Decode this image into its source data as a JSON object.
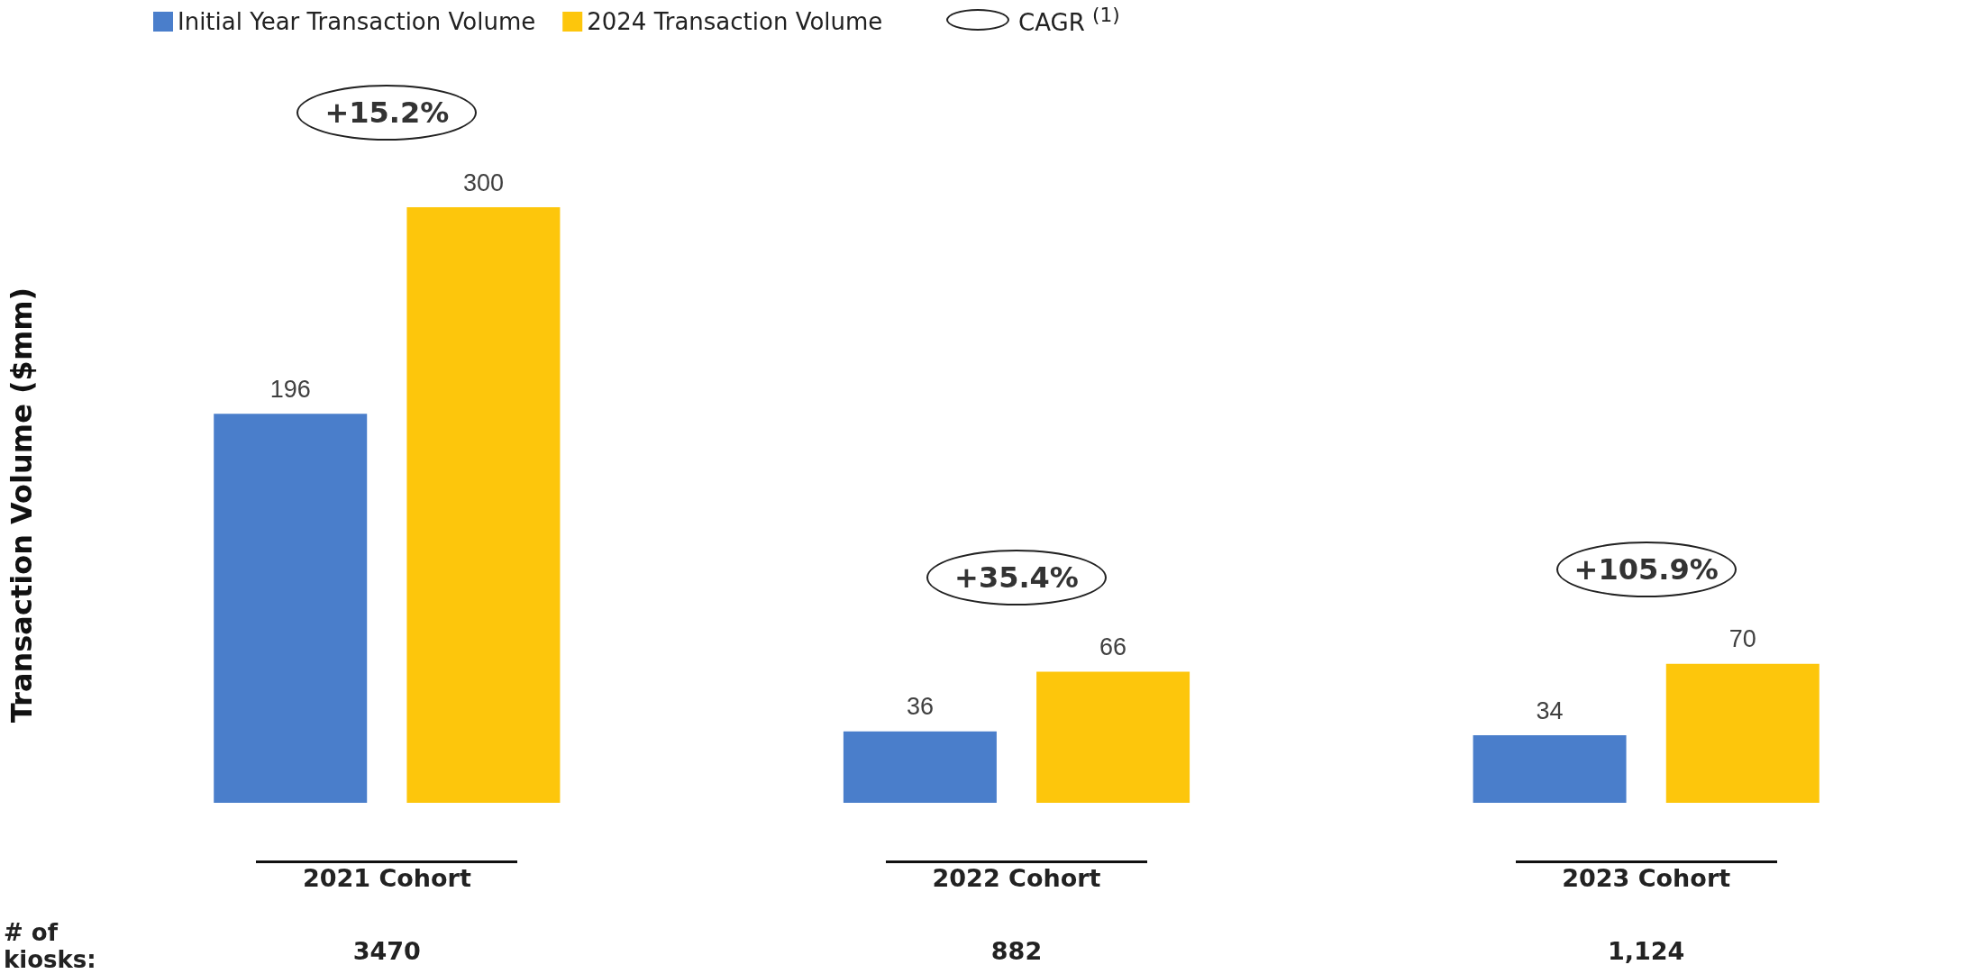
{
  "chart_data": {
    "type": "bar",
    "ylabel": "Transaction Volume ($mm)",
    "categories": [
      "2021 Cohort",
      "2022 Cohort",
      "2023 Cohort"
    ],
    "series": [
      {
        "name": "Initial Year Transaction Volume",
        "color": "#4a7ecb",
        "values": [
          196,
          36,
          34
        ]
      },
      {
        "name": "2024 Transaction Volume",
        "color": "#fdc60c",
        "values": [
          300,
          66,
          70
        ]
      }
    ],
    "data_labels": true,
    "legend": "top left",
    "grid": false,
    "annotations": [
      "CAGR $^{(1)}$",
      "+15.2%",
      "+35.4%",
      "+105.9%",
      "# of kiosks:",
      "3470",
      "882",
      "1,124"
    ]
  }
}
